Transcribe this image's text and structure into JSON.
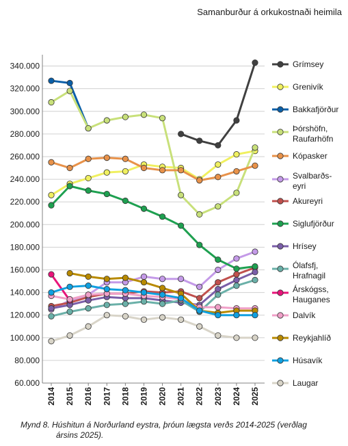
{
  "title": "Samanburður á orkukostnaði heimila",
  "caption_line1": "Mynd 8. Húshitun á Norðurland eystra, þróun lægsta verðs 2014-2025 (verðlag",
  "caption_line2": "ársins 2025).",
  "chart_data": {
    "type": "line",
    "title": "Samanburður á orkukostnaði heimila",
    "xlabel": "",
    "ylabel": "",
    "ylim": [
      60000,
      350000
    ],
    "yticks": [
      "60.000",
      "80.000",
      "100.000",
      "120.000",
      "140.000",
      "160.000",
      "180.000",
      "200.000",
      "220.000",
      "240.000",
      "260.000",
      "280.000",
      "300.000",
      "320.000",
      "340.000"
    ],
    "x": [
      "2014",
      "2015",
      "2016",
      "2017",
      "2018",
      "2019",
      "2020",
      "2021",
      "2022",
      "2023",
      "2024",
      "2025"
    ],
    "grid": true,
    "legend": "right",
    "series": [
      {
        "name": "Grímsey",
        "color": "#404040",
        "values": [
          null,
          null,
          null,
          null,
          null,
          null,
          null,
          280000,
          274000,
          270000,
          292000,
          343000
        ]
      },
      {
        "name": "Grenivík",
        "color": "#f0f060",
        "values": [
          226000,
          236000,
          241000,
          246000,
          247000,
          253000,
          251000,
          250000,
          240000,
          253000,
          262000,
          265000
        ]
      },
      {
        "name": "Bakkafjörður",
        "color": "#0a5fa8",
        "values": [
          327000,
          325000,
          285000,
          null,
          null,
          null,
          null,
          null,
          null,
          null,
          null,
          null
        ]
      },
      {
        "name": "Þórshöfn,\nRaufarhöfn",
        "color": "#c8e07a",
        "values": [
          308000,
          318000,
          285000,
          292000,
          295000,
          297000,
          294000,
          226000,
          209000,
          216000,
          228000,
          268000
        ]
      },
      {
        "name": "Kópasker",
        "color": "#e8924a",
        "values": [
          255000,
          250000,
          258000,
          259000,
          258000,
          250000,
          248000,
          248000,
          239000,
          242000,
          247000,
          252000
        ]
      },
      {
        "name": "Svalbarðs-\neyri",
        "color": "#c49ae8",
        "values": [
          125000,
          133000,
          138000,
          149000,
          149000,
          154000,
          152000,
          152000,
          145000,
          160000,
          170000,
          176000
        ]
      },
      {
        "name": "Akureyri",
        "color": "#c0504d",
        "values": [
          128000,
          131000,
          136000,
          139000,
          139000,
          141000,
          140000,
          141000,
          135000,
          149000,
          156000,
          162000
        ]
      },
      {
        "name": "Siglufjörður",
        "color": "#1ea050",
        "values": [
          217000,
          234000,
          230000,
          227000,
          221000,
          214000,
          207000,
          199000,
          182000,
          169000,
          161000,
          163000
        ]
      },
      {
        "name": "Hrísey",
        "color": "#7a5ea8",
        "values": [
          126000,
          129000,
          133000,
          136000,
          135000,
          135000,
          133000,
          131000,
          129000,
          143000,
          151000,
          158000
        ]
      },
      {
        "name": "Ólafsfj,\nHrafnagil",
        "color": "#6ab0a8",
        "values": [
          119000,
          123000,
          126000,
          129000,
          130000,
          132000,
          130000,
          133000,
          123000,
          138000,
          146000,
          151000
        ]
      },
      {
        "name": "Árskógss,\nHauganes",
        "color": "#e8147a",
        "values": [
          156000,
          133000,
          null,
          null,
          null,
          null,
          null,
          null,
          null,
          null,
          null,
          null
        ]
      },
      {
        "name": "Dalvík",
        "color": "#f0a0c8",
        "values": [
          137000,
          134000,
          138000,
          139000,
          139000,
          137000,
          136000,
          134000,
          127000,
          127000,
          126000,
          126000
        ]
      },
      {
        "name": "Reykjahlíð",
        "color": "#b88a00",
        "values": [
          null,
          157000,
          154000,
          152000,
          153000,
          149000,
          144000,
          139000,
          124000,
          122000,
          124000,
          124000
        ]
      },
      {
        "name": "Húsavík",
        "color": "#10a0e0",
        "values": [
          140000,
          145000,
          146000,
          143000,
          142000,
          140000,
          138000,
          135000,
          124000,
          120000,
          120000,
          120000
        ]
      },
      {
        "name": "Laugar",
        "color": "#d8d4c8",
        "values": [
          97000,
          102000,
          110000,
          120000,
          119000,
          116000,
          118000,
          116000,
          110000,
          102000,
          100000,
          100000
        ]
      }
    ]
  }
}
